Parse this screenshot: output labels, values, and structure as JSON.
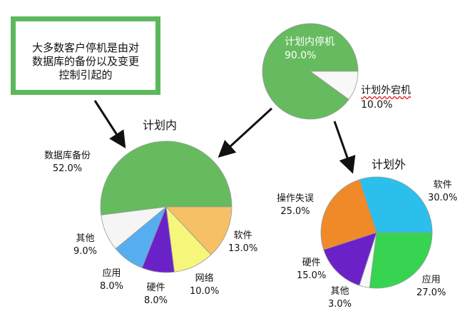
{
  "callout": {
    "lines": [
      "大多数客户停机是由对",
      "数据库的备份以及变更",
      "控制引起的"
    ],
    "border_color": "#5cb85c"
  },
  "chart_data": [
    {
      "type": "pie",
      "title": "",
      "start_angle_deg": 0,
      "direction": "counterclockwise",
      "slices": [
        {
          "label": "计划内停机",
          "value": 90.0,
          "value_label": "90.0%",
          "color": "#66bb5e"
        },
        {
          "label": "计划外宕机",
          "value": 10.0,
          "value_label": "10.0%",
          "color": "#f8f8f8"
        }
      ]
    },
    {
      "type": "pie",
      "title": "计划内",
      "start_angle_deg": 0,
      "direction": "counterclockwise",
      "slices": [
        {
          "label": "数据库备份",
          "value": 52.0,
          "value_label": "52.0%",
          "color": "#66bb5e"
        },
        {
          "label": "其他",
          "value": 9.0,
          "value_label": "9.0%",
          "color": "#f5f5f5"
        },
        {
          "label": "应用",
          "value": 8.0,
          "value_label": "8.0%",
          "color": "#56aef0"
        },
        {
          "label": "硬件",
          "value": 8.0,
          "value_label": "8.0%",
          "color": "#6a22c8"
        },
        {
          "label": "网络",
          "value": 10.0,
          "value_label": "10.0%",
          "color": "#f6f67a"
        },
        {
          "label": "软件",
          "value": 13.0,
          "value_label": "13.0%",
          "color": "#f6c066"
        }
      ]
    },
    {
      "type": "pie",
      "title": "计划外",
      "start_angle_deg": 0,
      "direction": "counterclockwise",
      "slices": [
        {
          "label": "软件",
          "value": 30.0,
          "value_label": "30.0%",
          "color": "#2bbfec"
        },
        {
          "label": "操作失误",
          "value": 25.0,
          "value_label": "25.0%",
          "color": "#f08a28"
        },
        {
          "label": "硬件",
          "value": 15.0,
          "value_label": "15.0%",
          "color": "#6a22c8"
        },
        {
          "label": "其他",
          "value": 3.0,
          "value_label": "3.0%",
          "color": "#f8f8f8"
        },
        {
          "label": "应用",
          "value": 27.0,
          "value_label": "27.0%",
          "color": "#36d450"
        }
      ]
    }
  ]
}
